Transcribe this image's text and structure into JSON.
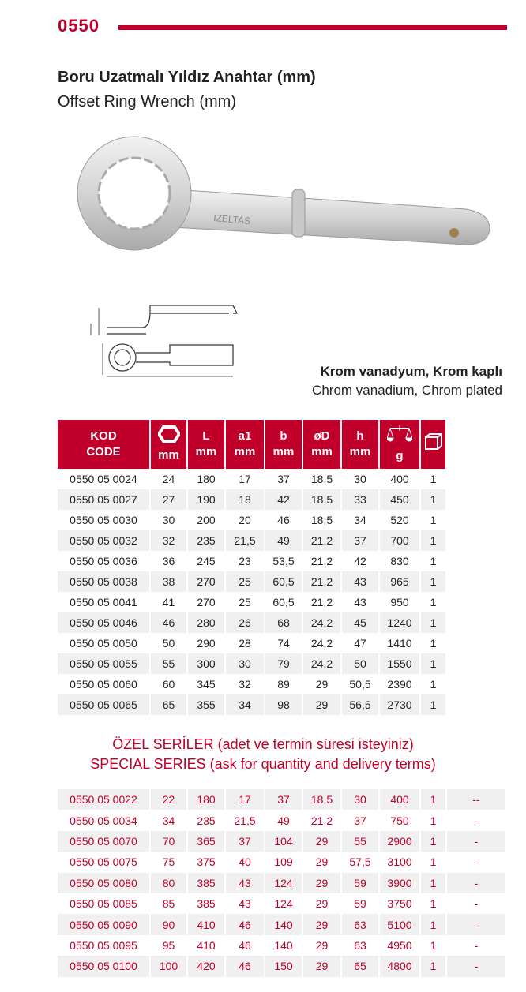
{
  "header": {
    "code": "0550",
    "title_tr": "Boru Uzatmalı Yıldız Anahtar (mm)",
    "title_en": "Offset Ring Wrench (mm)"
  },
  "material": {
    "tr": "Krom vanadyum, Krom kaplı",
    "en": "Chrom vanadium, Chrom plated"
  },
  "product_image": {
    "engraving": "IZELTAS"
  },
  "table": {
    "headers": [
      {
        "top": "KOD",
        "bottom": "CODE"
      },
      {
        "icon": "hexagon-icon",
        "bottom": "mm"
      },
      {
        "top": "L",
        "bottom": "mm"
      },
      {
        "top": "a1",
        "bottom": "mm"
      },
      {
        "top": "b",
        "bottom": "mm"
      },
      {
        "top": "øD",
        "bottom": "mm"
      },
      {
        "top": "h",
        "bottom": "mm"
      },
      {
        "icon": "scale-icon",
        "bottom": "g"
      },
      {
        "icon": "box-icon"
      }
    ],
    "rows": [
      [
        "0550 05 0024",
        "24",
        "180",
        "17",
        "37",
        "18,5",
        "30",
        "400",
        "1"
      ],
      [
        "0550 05 0027",
        "27",
        "190",
        "18",
        "42",
        "18,5",
        "33",
        "450",
        "1"
      ],
      [
        "0550 05 0030",
        "30",
        "200",
        "20",
        "46",
        "18,5",
        "34",
        "520",
        "1"
      ],
      [
        "0550 05 0032",
        "32",
        "235",
        "21,5",
        "49",
        "21,2",
        "37",
        "700",
        "1"
      ],
      [
        "0550 05 0036",
        "36",
        "245",
        "23",
        "53,5",
        "21,2",
        "42",
        "830",
        "1"
      ],
      [
        "0550 05 0038",
        "38",
        "270",
        "25",
        "60,5",
        "21,2",
        "43",
        "965",
        "1"
      ],
      [
        "0550 05 0041",
        "41",
        "270",
        "25",
        "60,5",
        "21,2",
        "43",
        "950",
        "1"
      ],
      [
        "0550 05 0046",
        "46",
        "280",
        "26",
        "68",
        "24,2",
        "45",
        "1240",
        "1"
      ],
      [
        "0550 05 0050",
        "50",
        "290",
        "28",
        "74",
        "24,2",
        "47",
        "1410",
        "1"
      ],
      [
        "0550 05 0055",
        "55",
        "300",
        "30",
        "79",
        "24,2",
        "50",
        "1550",
        "1"
      ],
      [
        "0550 05 0060",
        "60",
        "345",
        "32",
        "89",
        "29",
        "50,5",
        "2390",
        "1"
      ],
      [
        "0550 05 0065",
        "65",
        "355",
        "34",
        "98",
        "29",
        "56,5",
        "2730",
        "1"
      ]
    ]
  },
  "special": {
    "title_tr": "ÖZEL SERİLER  (adet ve termin süresi isteyiniz)",
    "title_en": "SPECIAL SERIES (ask for quantity and delivery terms)",
    "rows": [
      [
        "0550 05 0022",
        "22",
        "180",
        "17",
        "37",
        "18,5",
        "30",
        "400",
        "1",
        "--"
      ],
      [
        "0550 05 0034",
        "34",
        "235",
        "21,5",
        "49",
        "21,2",
        "37",
        "750",
        "1",
        "-"
      ],
      [
        "0550 05 0070",
        "70",
        "365",
        "37",
        "104",
        "29",
        "55",
        "2900",
        "1",
        "-"
      ],
      [
        "0550 05 0075",
        "75",
        "375",
        "40",
        "109",
        "29",
        "57,5",
        "3100",
        "1",
        "-"
      ],
      [
        "0550 05 0080",
        "80",
        "385",
        "43",
        "124",
        "29",
        "59",
        "3900",
        "1",
        "-"
      ],
      [
        "0550 05 0085",
        "85",
        "385",
        "43",
        "124",
        "29",
        "59",
        "3750",
        "1",
        "-"
      ],
      [
        "0550 05 0090",
        "90",
        "410",
        "46",
        "140",
        "29",
        "63",
        "5100",
        "1",
        "-"
      ],
      [
        "0550 05 0095",
        "95",
        "410",
        "46",
        "140",
        "29",
        "63",
        "4950",
        "1",
        "-"
      ],
      [
        "0550 05 0100",
        "100",
        "420",
        "46",
        "150",
        "29",
        "65",
        "4800",
        "1",
        "-"
      ]
    ]
  },
  "colors": {
    "accent": "#c0002a",
    "row_alt": "#f0f0f0"
  }
}
